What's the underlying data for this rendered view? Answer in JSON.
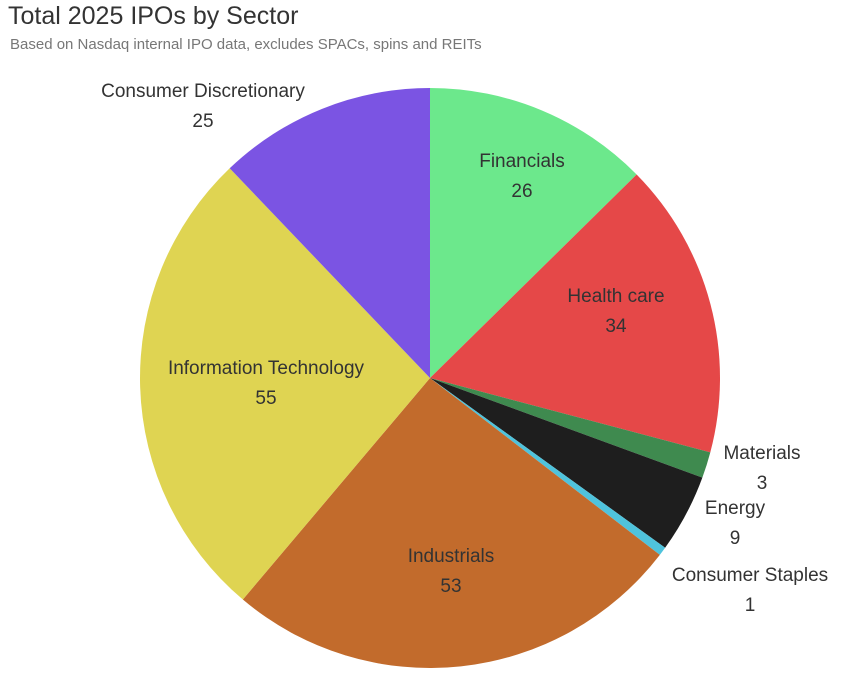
{
  "chart_data": {
    "type": "pie",
    "title": "Total 2025 IPOs by Sector",
    "subtitle": "Based on Nasdaq internal IPO data, excludes SPACs, spins and REITs",
    "slices": [
      {
        "label": "Financials",
        "value": 26,
        "color": "#6ce88c"
      },
      {
        "label": "Health care",
        "value": 34,
        "color": "#e54848"
      },
      {
        "label": "Materials",
        "value": 3,
        "color": "#3f8a4f"
      },
      {
        "label": "Energy",
        "value": 9,
        "color": "#1e1e1e"
      },
      {
        "label": "Consumer Staples",
        "value": 1,
        "color": "#4fc3dc"
      },
      {
        "label": "Industrials",
        "value": 53,
        "color": "#c26b2c"
      },
      {
        "label": "Information Technology",
        "value": 55,
        "color": "#dfd452"
      },
      {
        "label": "Consumer Discretionary",
        "value": 25,
        "color": "#7b54e3"
      }
    ]
  }
}
